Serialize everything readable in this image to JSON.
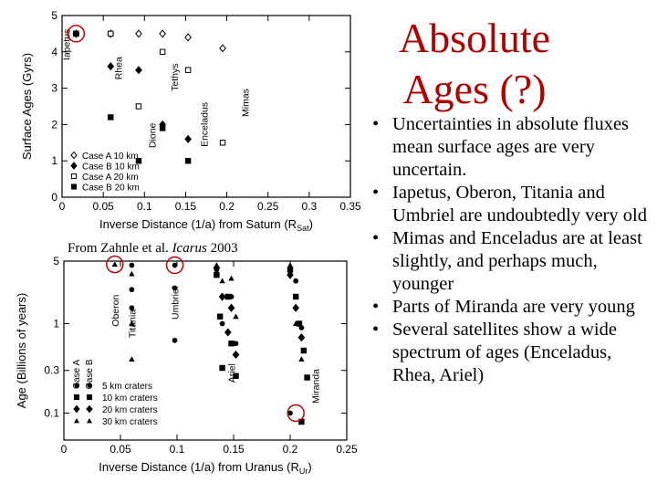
{
  "slide": {
    "title_line1": "Absolute",
    "title_line2": "Ages (?)",
    "bullets": [
      "Uncertainties in absolute fluxes mean surface ages are very uncertain.",
      "Iapetus, Oberon, Titania and Umbriel are undoubtedly very old",
      "Mimas and Enceladus are at least slightly, and perhaps much, younger",
      "Parts of Miranda are very young",
      "Several satellites show a wide spectrum of ages (Enceladus, Rhea, Ariel)"
    ],
    "source_prefix": "From Zahnle et al. ",
    "source_journal": "Icarus",
    "source_year": " 2003",
    "highlight_color": "#c00000"
  },
  "chart_data": [
    {
      "type": "scatter",
      "title": "",
      "xlabel": "Inverse Distance (1/a) from Saturn (R",
      "xlabel_sub": "Sat",
      "xlabel_end": ")",
      "ylabel": "Surface Ages (Gyrs)",
      "xlim": [
        0,
        0.35
      ],
      "ylim": [
        0,
        5
      ],
      "xticks": [
        0,
        0.05,
        0.1,
        0.15,
        0.2,
        0.25,
        0.3,
        0.35
      ],
      "xtick_labels": [
        "0",
        "0.05",
        "0.1",
        "0.15",
        "0.2",
        "0.25",
        "0.3",
        "0.35"
      ],
      "yticks": [
        0,
        1,
        2,
        3,
        4,
        5
      ],
      "ytick_labels": [
        "0",
        "1",
        "2",
        "3",
        "4",
        "5"
      ],
      "legend_position": "bottom-left",
      "legend": [
        {
          "label": "Case A 10 km",
          "marker": "diamond-open"
        },
        {
          "label": "Case B 10 km",
          "marker": "diamond-filled"
        },
        {
          "label": "Case A 20 km",
          "marker": "square-open"
        },
        {
          "label": "Case B 20 km",
          "marker": "square-filled"
        }
      ],
      "moon_labels": [
        {
          "name": "Iapetus",
          "x": 0.005,
          "y": 4.2
        },
        {
          "name": "Rhea",
          "x": 0.068,
          "y": 3.55
        },
        {
          "name": "Dione",
          "x": 0.109,
          "y": 1.7
        },
        {
          "name": "Tethys",
          "x": 0.136,
          "y": 3.3
        },
        {
          "name": "Enceladus",
          "x": 0.172,
          "y": 2.0
        },
        {
          "name": "Mimas",
          "x": 0.222,
          "y": 2.6
        }
      ],
      "series": [
        {
          "marker": "diamond-open",
          "points": [
            [
              0.017,
              4.5
            ],
            [
              0.059,
              4.5
            ],
            [
              0.093,
              4.5
            ],
            [
              0.122,
              4.5
            ],
            [
              0.153,
              4.4
            ],
            [
              0.195,
              4.1
            ]
          ]
        },
        {
          "marker": "diamond-filled",
          "points": [
            [
              0.017,
              4.5
            ],
            [
              0.059,
              3.6
            ],
            [
              0.093,
              3.5
            ],
            [
              0.122,
              2.0
            ],
            [
              0.153,
              1.6
            ]
          ]
        },
        {
          "marker": "square-open",
          "points": [
            [
              0.017,
              4.5
            ],
            [
              0.059,
              4.5
            ],
            [
              0.093,
              2.5
            ],
            [
              0.122,
              4.0
            ],
            [
              0.153,
              3.5
            ],
            [
              0.195,
              1.5
            ]
          ]
        },
        {
          "marker": "square-filled",
          "points": [
            [
              0.017,
              4.5
            ],
            [
              0.059,
              2.2
            ],
            [
              0.093,
              1.0
            ],
            [
              0.122,
              1.9
            ],
            [
              0.153,
              1.0
            ]
          ]
        }
      ],
      "highlight_circles": [
        {
          "x": 0.017,
          "y": 4.5
        }
      ]
    },
    {
      "type": "scatter",
      "title": "",
      "xlabel": "Inverse Distance (1/a) from Uranus (R",
      "xlabel_sub": "Ur",
      "xlabel_end": ")",
      "ylabel": "Age (Billions of years)",
      "xlim": [
        0,
        0.25
      ],
      "ylim": [
        0.05,
        5
      ],
      "log_y": true,
      "xticks": [
        0,
        0.05,
        0.1,
        0.15,
        0.2,
        0.25
      ],
      "xtick_labels": [
        "0",
        "0.05",
        "0.1",
        "0.15",
        "0.2",
        "0.25"
      ],
      "yticks": [
        0.1,
        0.3,
        1,
        5
      ],
      "ytick_labels": [
        "0.1",
        "0.3",
        "1",
        "5"
      ],
      "legend_position": "bottom-left",
      "legend_case_labels": [
        "Case A",
        "Case B"
      ],
      "legend": [
        {
          "label": "5 km craters",
          "marker": "circle"
        },
        {
          "label": "10 km craters",
          "marker": "square"
        },
        {
          "label": "20 km craters",
          "marker": "diamond"
        },
        {
          "label": "30 km craters",
          "marker": "triangle"
        }
      ],
      "moon_labels": [
        {
          "name": "Oberon",
          "x": 0.045,
          "y": 1.4
        },
        {
          "name": "Titania",
          "x": 0.06,
          "y": 1.0
        },
        {
          "name": "Umbriel",
          "x": 0.098,
          "y": 1.7
        },
        {
          "name": "Ariel",
          "x": 0.148,
          "y": 0.28
        },
        {
          "name": "Miranda",
          "x": 0.222,
          "y": 0.2
        }
      ],
      "series": [
        {
          "marker": "triangle",
          "points": [
            [
              0.045,
              4.6
            ],
            [
              0.06,
              3.6
            ],
            [
              0.06,
              1.0
            ],
            [
              0.06,
              0.4
            ],
            [
              0.135,
              4.5
            ],
            [
              0.14,
              3.0
            ],
            [
              0.148,
              3.2
            ],
            [
              0.152,
              1.2
            ],
            [
              0.2,
              4.5
            ],
            [
              0.205,
              1.0
            ],
            [
              0.21,
              0.4
            ]
          ]
        },
        {
          "marker": "circle",
          "points": [
            [
              0.06,
              4.5
            ],
            [
              0.06,
              2.4
            ],
            [
              0.06,
              1.5
            ],
            [
              0.098,
              4.5
            ],
            [
              0.098,
              2.5
            ],
            [
              0.098,
              0.65
            ],
            [
              0.135,
              4.0
            ],
            [
              0.14,
              1.0
            ],
            [
              0.148,
              2.0
            ],
            [
              0.152,
              0.6
            ],
            [
              0.205,
              3.0
            ],
            [
              0.21,
              0.9
            ],
            [
              0.2,
              0.1
            ]
          ]
        },
        {
          "marker": "square",
          "points": [
            [
              0.135,
              3.5
            ],
            [
              0.138,
              1.2
            ],
            [
              0.14,
              0.32
            ],
            [
              0.145,
              2.0
            ],
            [
              0.148,
              0.6
            ],
            [
              0.152,
              0.26
            ],
            [
              0.2,
              4.0
            ],
            [
              0.205,
              2.0
            ],
            [
              0.208,
              1.0
            ],
            [
              0.212,
              0.5
            ],
            [
              0.215,
              0.25
            ],
            [
              0.21,
              0.08
            ]
          ]
        },
        {
          "marker": "diamond",
          "points": [
            [
              0.135,
              4.2
            ],
            [
              0.14,
              2.0
            ],
            [
              0.145,
              0.8
            ],
            [
              0.148,
              1.5
            ],
            [
              0.152,
              0.45
            ],
            [
              0.2,
              3.5
            ],
            [
              0.205,
              1.5
            ],
            [
              0.21,
              0.7
            ]
          ]
        }
      ],
      "highlight_circles": [
        {
          "x": 0.045,
          "y": 4.6
        },
        {
          "x": 0.098,
          "y": 4.5
        },
        {
          "x": 0.205,
          "y": 0.1
        }
      ]
    }
  ]
}
